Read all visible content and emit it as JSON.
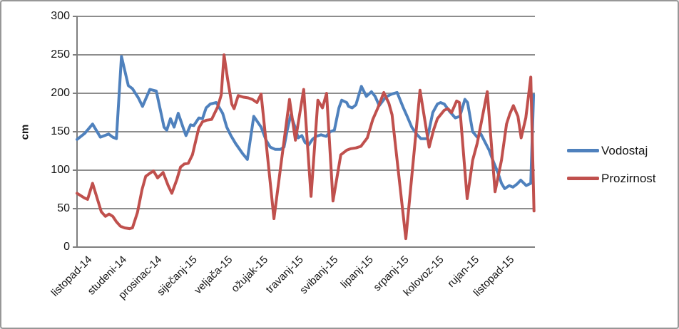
{
  "colors": {
    "grid": "#8d8d8d",
    "axis": "#7f7f7f",
    "border": "#979797",
    "text": "#151515",
    "background": "#ffffff"
  },
  "chart_data": {
    "type": "line",
    "title": "",
    "xlabel": "",
    "ylabel": "cm",
    "ylim": [
      0,
      300
    ],
    "ytick_step": 50,
    "yticks": [
      300,
      250,
      200,
      150,
      100,
      50,
      0
    ],
    "grid": true,
    "legend_position": "right",
    "x_axis_labels": [
      "listopad-14",
      "studeni-14",
      "prosinac-14",
      "siječanj-15",
      "veljača-15",
      "ožujak-15",
      "travanj-15",
      "svibanj-15",
      "lipanj-15",
      "srpanj-15",
      "kolovoz-15",
      "rujan-15",
      "listopad-15"
    ],
    "x_unit": "month",
    "series": [
      {
        "name": "Vodostaj",
        "color": "#4F81BD",
        "points": [
          [
            0.0,
            140
          ],
          [
            0.017,
            148
          ],
          [
            0.034,
            160
          ],
          [
            0.051,
            143
          ],
          [
            0.069,
            147
          ],
          [
            0.078,
            143
          ],
          [
            0.086,
            141
          ],
          [
            0.097,
            248
          ],
          [
            0.112,
            210
          ],
          [
            0.121,
            206
          ],
          [
            0.134,
            194
          ],
          [
            0.143,
            183
          ],
          [
            0.159,
            205
          ],
          [
            0.173,
            203
          ],
          [
            0.19,
            156
          ],
          [
            0.196,
            152
          ],
          [
            0.204,
            167
          ],
          [
            0.212,
            156
          ],
          [
            0.221,
            174
          ],
          [
            0.232,
            155
          ],
          [
            0.238,
            145
          ],
          [
            0.248,
            159
          ],
          [
            0.255,
            158
          ],
          [
            0.266,
            168
          ],
          [
            0.274,
            167
          ],
          [
            0.282,
            181
          ],
          [
            0.291,
            186
          ],
          [
            0.304,
            188
          ],
          [
            0.318,
            174
          ],
          [
            0.327,
            156
          ],
          [
            0.336,
            145
          ],
          [
            0.346,
            135
          ],
          [
            0.361,
            122
          ],
          [
            0.372,
            114
          ],
          [
            0.386,
            170
          ],
          [
            0.402,
            156
          ],
          [
            0.413,
            139
          ],
          [
            0.422,
            130
          ],
          [
            0.433,
            127
          ],
          [
            0.444,
            127
          ],
          [
            0.452,
            130
          ],
          [
            0.459,
            152
          ],
          [
            0.467,
            172
          ],
          [
            0.475,
            158
          ],
          [
            0.483,
            142
          ],
          [
            0.491,
            145
          ],
          [
            0.498,
            136
          ],
          [
            0.506,
            133
          ],
          [
            0.514,
            140
          ],
          [
            0.522,
            144
          ],
          [
            0.533,
            146
          ],
          [
            0.544,
            144
          ],
          [
            0.553,
            150
          ],
          [
            0.562,
            152
          ],
          [
            0.572,
            181
          ],
          [
            0.578,
            191
          ],
          [
            0.589,
            188
          ],
          [
            0.593,
            183
          ],
          [
            0.601,
            181
          ],
          [
            0.609,
            185
          ],
          [
            0.621,
            209
          ],
          [
            0.632,
            196
          ],
          [
            0.643,
            202
          ],
          [
            0.651,
            196
          ],
          [
            0.66,
            184
          ],
          [
            0.674,
            195
          ],
          [
            0.687,
            199
          ],
          [
            0.699,
            201
          ],
          [
            0.712,
            182
          ],
          [
            0.721,
            170
          ],
          [
            0.731,
            156
          ],
          [
            0.74,
            148
          ],
          [
            0.751,
            141
          ],
          [
            0.765,
            141
          ],
          [
            0.777,
            175
          ],
          [
            0.787,
            186
          ],
          [
            0.794,
            188
          ],
          [
            0.802,
            186
          ],
          [
            0.813,
            177
          ],
          [
            0.826,
            168
          ],
          [
            0.836,
            170
          ],
          [
            0.847,
            192
          ],
          [
            0.853,
            188
          ],
          [
            0.864,
            150
          ],
          [
            0.874,
            143
          ],
          [
            0.882,
            147
          ],
          [
            0.9,
            126
          ],
          [
            0.91,
            110
          ],
          [
            0.919,
            97
          ],
          [
            0.927,
            83
          ],
          [
            0.934,
            76
          ],
          [
            0.944,
            80
          ],
          [
            0.952,
            78
          ],
          [
            0.961,
            82
          ],
          [
            0.969,
            87
          ],
          [
            0.981,
            80
          ],
          [
            0.991,
            83
          ],
          [
            0.997,
            198
          ]
        ]
      },
      {
        "name": "Prozirnost",
        "color": "#C0504D",
        "points": [
          [
            0.0,
            70
          ],
          [
            0.016,
            64
          ],
          [
            0.023,
            62
          ],
          [
            0.034,
            83
          ],
          [
            0.053,
            46
          ],
          [
            0.062,
            40
          ],
          [
            0.07,
            43
          ],
          [
            0.078,
            40
          ],
          [
            0.086,
            33
          ],
          [
            0.095,
            27
          ],
          [
            0.104,
            25
          ],
          [
            0.115,
            24
          ],
          [
            0.121,
            25
          ],
          [
            0.132,
            45
          ],
          [
            0.142,
            75
          ],
          [
            0.15,
            92
          ],
          [
            0.159,
            96
          ],
          [
            0.167,
            99
          ],
          [
            0.176,
            90
          ],
          [
            0.188,
            97
          ],
          [
            0.199,
            80
          ],
          [
            0.207,
            70
          ],
          [
            0.218,
            88
          ],
          [
            0.226,
            104
          ],
          [
            0.234,
            108
          ],
          [
            0.243,
            109
          ],
          [
            0.252,
            120
          ],
          [
            0.26,
            140
          ],
          [
            0.266,
            155
          ],
          [
            0.274,
            163
          ],
          [
            0.283,
            165
          ],
          [
            0.294,
            166
          ],
          [
            0.307,
            182
          ],
          [
            0.315,
            198
          ],
          [
            0.321,
            250
          ],
          [
            0.329,
            218
          ],
          [
            0.338,
            186
          ],
          [
            0.343,
            180
          ],
          [
            0.352,
            197
          ],
          [
            0.363,
            195
          ],
          [
            0.374,
            194
          ],
          [
            0.383,
            192
          ],
          [
            0.393,
            188
          ],
          [
            0.402,
            199
          ],
          [
            0.43,
            37
          ],
          [
            0.447,
            115
          ],
          [
            0.464,
            192
          ],
          [
            0.477,
            139
          ],
          [
            0.495,
            205
          ],
          [
            0.511,
            66
          ],
          [
            0.526,
            191
          ],
          [
            0.536,
            181
          ],
          [
            0.545,
            200
          ],
          [
            0.559,
            60
          ],
          [
            0.576,
            120
          ],
          [
            0.589,
            126
          ],
          [
            0.598,
            128
          ],
          [
            0.609,
            129
          ],
          [
            0.62,
            131
          ],
          [
            0.634,
            142
          ],
          [
            0.646,
            166
          ],
          [
            0.657,
            181
          ],
          [
            0.67,
            201
          ],
          [
            0.681,
            187
          ],
          [
            0.688,
            172
          ],
          [
            0.718,
            11
          ],
          [
            0.749,
            204
          ],
          [
            0.769,
            130
          ],
          [
            0.779,
            153
          ],
          [
            0.787,
            167
          ],
          [
            0.794,
            172
          ],
          [
            0.802,
            178
          ],
          [
            0.81,
            180
          ],
          [
            0.818,
            175
          ],
          [
            0.829,
            190
          ],
          [
            0.835,
            188
          ],
          [
            0.852,
            63
          ],
          [
            0.864,
            113
          ],
          [
            0.874,
            135
          ],
          [
            0.896,
            202
          ],
          [
            0.913,
            72
          ],
          [
            0.927,
            113
          ],
          [
            0.938,
            160
          ],
          [
            0.945,
            173
          ],
          [
            0.953,
            184
          ],
          [
            0.963,
            170
          ],
          [
            0.97,
            142
          ],
          [
            0.98,
            168
          ],
          [
            0.991,
            221
          ],
          [
            0.998,
            47
          ]
        ]
      }
    ]
  }
}
